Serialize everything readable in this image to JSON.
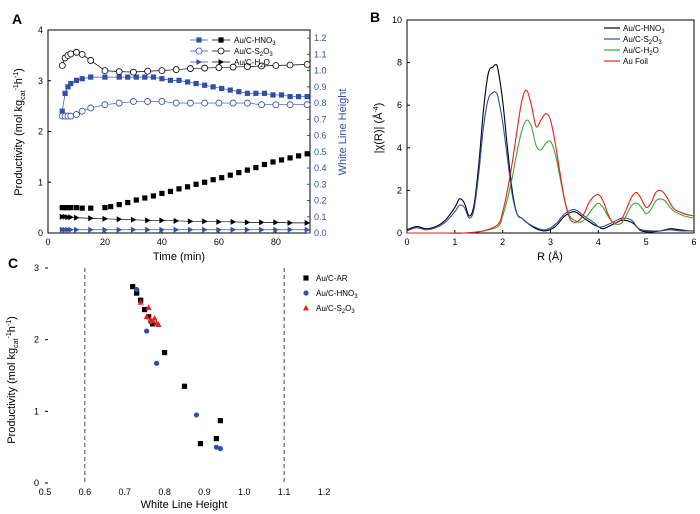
{
  "chart_data": [
    {
      "panel": "A",
      "type": "line",
      "xlabel": "Time (min)",
      "ylabel": "Productivity (mol kg_cat^-1 h^-1)",
      "y2label": "White Line Height",
      "xlim": [
        0,
        92
      ],
      "ylim": [
        0,
        4
      ],
      "y2lim": [
        0,
        1.25
      ],
      "xticks": [
        0,
        20,
        40,
        60,
        80
      ],
      "yticks": [
        0,
        1,
        2,
        3,
        4
      ],
      "y2ticks": [
        0.0,
        0.1,
        0.2,
        0.3,
        0.4,
        0.5,
        0.6,
        0.7,
        0.8,
        0.9,
        1.0,
        1.1,
        1.2
      ],
      "legend": [
        "Au/C-HNO3",
        "Au/C-S2O3",
        "Au/C-H2O"
      ],
      "colors": {
        "black": "#000000",
        "blue": "#2f4fa8"
      },
      "series": [
        {
          "name": "Au/C-HNO3",
          "axis": "left",
          "marker": "square-filled",
          "color": "#000000",
          "x": [
            5,
            6,
            7,
            8,
            10,
            12,
            15,
            20,
            22,
            25,
            28,
            31,
            34,
            37,
            40,
            43,
            46,
            49,
            52,
            55,
            58,
            61,
            64,
            67,
            70,
            73,
            76,
            79,
            82,
            85,
            88,
            91
          ],
          "y": [
            0.5,
            0.5,
            0.5,
            0.5,
            0.5,
            0.49,
            0.49,
            0.5,
            0.52,
            0.56,
            0.6,
            0.65,
            0.69,
            0.73,
            0.78,
            0.82,
            0.87,
            0.91,
            0.96,
            1.0,
            1.05,
            1.09,
            1.14,
            1.19,
            1.24,
            1.29,
            1.35,
            1.4,
            1.44,
            1.48,
            1.52,
            1.56
          ]
        },
        {
          "name": "Au/C-HNO3",
          "axis": "right",
          "marker": "square-filled",
          "line": true,
          "color": "#2f4fa8",
          "x": [
            5,
            6,
            7,
            8,
            10,
            12,
            15,
            20,
            25,
            28,
            31,
            34,
            37,
            40,
            43,
            46,
            49,
            52,
            55,
            58,
            61,
            64,
            67,
            70,
            73,
            76,
            79,
            82,
            85,
            88,
            91
          ],
          "y": [
            0.75,
            0.86,
            0.9,
            0.92,
            0.94,
            0.95,
            0.96,
            0.96,
            0.96,
            0.96,
            0.96,
            0.96,
            0.96,
            0.95,
            0.94,
            0.94,
            0.93,
            0.92,
            0.91,
            0.9,
            0.89,
            0.88,
            0.87,
            0.86,
            0.86,
            0.86,
            0.85,
            0.85,
            0.84,
            0.84,
            0.84
          ]
        },
        {
          "name": "Au/C-S2O3",
          "axis": "left",
          "marker": "circle-open",
          "line": true,
          "color": "#000000",
          "x": [
            5,
            6,
            7,
            8,
            10,
            12,
            15,
            20,
            25,
            30,
            35,
            40,
            45,
            50,
            55,
            60,
            65,
            70,
            75,
            80,
            85,
            91
          ],
          "y": [
            3.3,
            3.45,
            3.5,
            3.53,
            3.56,
            3.52,
            3.4,
            3.2,
            3.18,
            3.17,
            3.19,
            3.2,
            3.22,
            3.24,
            3.25,
            3.26,
            3.27,
            3.28,
            3.29,
            3.3,
            3.31,
            3.32
          ]
        },
        {
          "name": "Au/C-S2O3",
          "axis": "right",
          "marker": "circle-open",
          "line": true,
          "color": "#2f4fa8",
          "x": [
            5,
            6,
            7,
            8,
            10,
            12,
            15,
            20,
            25,
            30,
            35,
            40,
            45,
            50,
            55,
            60,
            65,
            70,
            75,
            80,
            85,
            91
          ],
          "y": [
            0.72,
            0.72,
            0.72,
            0.72,
            0.73,
            0.75,
            0.77,
            0.79,
            0.8,
            0.81,
            0.81,
            0.81,
            0.8,
            0.8,
            0.8,
            0.8,
            0.8,
            0.8,
            0.79,
            0.79,
            0.79,
            0.79
          ]
        },
        {
          "name": "Au/C-H2O",
          "axis": "left",
          "marker": "triangle-right",
          "line": true,
          "color": "#000000",
          "x": [
            5,
            6,
            7,
            8,
            10,
            15,
            20,
            25,
            30,
            35,
            40,
            45,
            50,
            55,
            60,
            65,
            70,
            75,
            80,
            85,
            91
          ],
          "y": [
            0.32,
            0.32,
            0.31,
            0.31,
            0.3,
            0.29,
            0.28,
            0.27,
            0.26,
            0.25,
            0.25,
            0.24,
            0.23,
            0.23,
            0.22,
            0.22,
            0.21,
            0.21,
            0.21,
            0.2,
            0.2
          ]
        },
        {
          "name": "Au/C-H2O",
          "axis": "right",
          "marker": "triangle-right",
          "line": true,
          "color": "#2f4fa8",
          "x": [
            5,
            6,
            7,
            8,
            10,
            15,
            20,
            25,
            30,
            35,
            40,
            45,
            50,
            55,
            60,
            65,
            70,
            75,
            80,
            85,
            91
          ],
          "y": [
            0.02,
            0.02,
            0.02,
            0.02,
            0.02,
            0.02,
            0.02,
            0.02,
            0.02,
            0.02,
            0.02,
            0.02,
            0.02,
            0.02,
            0.02,
            0.02,
            0.02,
            0.02,
            0.02,
            0.02,
            0.02
          ]
        }
      ]
    },
    {
      "panel": "B",
      "type": "line",
      "xlabel": "R (Å)",
      "ylabel": "|χ(R)| (Å^-4)",
      "xlim": [
        0,
        6
      ],
      "ylim": [
        0,
        10
      ],
      "xticks": [
        0,
        1,
        2,
        3,
        4,
        5,
        6
      ],
      "yticks": [
        0,
        2,
        4,
        6,
        8,
        10
      ],
      "legend_position": "top-right",
      "series": [
        {
          "name": "Au/C-HNO3",
          "color": "#000000",
          "x": [
            0,
            0.2,
            0.4,
            0.6,
            0.8,
            1.0,
            1.1,
            1.2,
            1.3,
            1.4,
            1.5,
            1.6,
            1.7,
            1.8,
            1.85,
            1.9,
            2.0,
            2.1,
            2.2,
            2.3,
            2.4,
            2.5,
            2.7,
            2.9,
            3.1,
            3.3,
            3.5,
            3.7,
            3.9,
            4.0,
            4.1,
            4.3,
            4.5,
            4.7,
            4.8,
            4.9,
            5.1,
            5.3,
            5.5,
            5.7,
            5.9,
            6.0
          ],
          "y": [
            0.15,
            0.3,
            0.2,
            0.3,
            0.6,
            1.2,
            1.6,
            1.4,
            0.8,
            1.3,
            3.2,
            5.8,
            7.5,
            7.8,
            7.9,
            7.7,
            6.2,
            4.0,
            2.0,
            0.9,
            0.7,
            0.5,
            0.2,
            0.1,
            0.3,
            0.8,
            1.0,
            0.7,
            0.4,
            0.3,
            0.2,
            0.4,
            0.6,
            0.5,
            0.3,
            0.1,
            0.05,
            0.1,
            0.2,
            0.15,
            0.1,
            0.1
          ]
        },
        {
          "name": "Au/C-S2O3",
          "color": "#2f4fa8",
          "x": [
            0,
            0.2,
            0.4,
            0.6,
            0.8,
            1.0,
            1.1,
            1.2,
            1.3,
            1.4,
            1.5,
            1.6,
            1.7,
            1.8,
            1.85,
            1.9,
            2.0,
            2.1,
            2.2,
            2.3,
            2.4,
            2.5,
            2.7,
            2.9,
            3.1,
            3.3,
            3.5,
            3.7,
            3.9,
            4.0,
            4.1,
            4.3,
            4.5,
            4.7,
            4.8,
            4.9,
            5.1,
            5.3,
            5.5,
            5.7,
            5.9,
            6.0
          ],
          "y": [
            0.1,
            0.25,
            0.15,
            0.25,
            0.5,
            1.0,
            1.3,
            1.2,
            0.7,
            1.1,
            2.8,
            5.0,
            6.3,
            6.6,
            6.6,
            6.4,
            5.2,
            3.5,
            1.8,
            0.9,
            0.7,
            0.5,
            0.25,
            0.15,
            0.4,
            0.9,
            1.1,
            0.8,
            0.5,
            0.3,
            0.3,
            0.5,
            0.7,
            0.6,
            0.3,
            0.15,
            0.1,
            0.1,
            0.15,
            0.1,
            0.1,
            0.1
          ]
        },
        {
          "name": "Au/C-H2O",
          "color": "#3aa63a",
          "x": [
            0,
            0.4,
            0.8,
            1.2,
            1.6,
            1.9,
            2.0,
            2.1,
            2.2,
            2.3,
            2.4,
            2.5,
            2.6,
            2.7,
            2.8,
            2.9,
            3.0,
            3.1,
            3.2,
            3.3,
            3.4,
            3.5,
            3.6,
            3.7,
            3.8,
            3.9,
            4.0,
            4.1,
            4.2,
            4.3,
            4.4,
            4.5,
            4.6,
            4.7,
            4.8,
            4.9,
            5.0,
            5.1,
            5.2,
            5.3,
            5.4,
            5.5,
            5.6,
            5.8,
            6.0
          ],
          "y": [
            0,
            0,
            0,
            0,
            0.1,
            0.3,
            0.8,
            1.6,
            2.6,
            3.8,
            4.8,
            5.3,
            5.0,
            4.1,
            3.9,
            4.2,
            4.3,
            3.7,
            2.6,
            1.5,
            0.8,
            0.6,
            0.5,
            0.6,
            0.9,
            1.2,
            1.4,
            1.2,
            0.8,
            0.5,
            0.4,
            0.5,
            0.9,
            1.3,
            1.4,
            1.2,
            0.9,
            1.1,
            1.5,
            1.6,
            1.5,
            1.2,
            1.0,
            0.8,
            0.7
          ]
        },
        {
          "name": "Au Foil",
          "color": "#e2231a",
          "x": [
            0,
            0.4,
            0.8,
            1.2,
            1.6,
            1.9,
            2.0,
            2.1,
            2.2,
            2.3,
            2.4,
            2.5,
            2.6,
            2.7,
            2.8,
            2.9,
            3.0,
            3.1,
            3.2,
            3.3,
            3.4,
            3.5,
            3.6,
            3.7,
            3.8,
            3.9,
            4.0,
            4.1,
            4.2,
            4.3,
            4.4,
            4.5,
            4.6,
            4.7,
            4.8,
            4.9,
            5.0,
            5.1,
            5.2,
            5.3,
            5.4,
            5.5,
            5.6,
            5.8,
            6.0
          ],
          "y": [
            0,
            0,
            0,
            0,
            0.1,
            0.4,
            1.0,
            2.0,
            3.3,
            4.8,
            6.2,
            6.7,
            6.0,
            5.0,
            5.3,
            5.6,
            5.3,
            4.2,
            2.8,
            1.5,
            0.7,
            0.5,
            0.6,
            0.9,
            1.4,
            1.7,
            1.8,
            1.5,
            0.9,
            0.5,
            0.5,
            0.7,
            1.2,
            1.7,
            1.9,
            1.6,
            1.2,
            1.4,
            1.9,
            2.0,
            1.8,
            1.4,
            1.1,
            0.9,
            0.8
          ]
        }
      ]
    },
    {
      "panel": "C",
      "type": "scatter",
      "xlabel": "White Line Height",
      "ylabel": "Productivity (mol kg_cat^-1 h^-1)",
      "xlim": [
        0.5,
        1.2
      ],
      "ylim": [
        0,
        3
      ],
      "xticks": [
        0.5,
        0.6,
        0.7,
        0.8,
        0.9,
        1.0,
        1.1,
        1.2
      ],
      "yticks": [
        0,
        1,
        2,
        3
      ],
      "vlines": [
        0.6,
        1.1
      ],
      "legend_position": "top-right",
      "series": [
        {
          "name": "Au/C-AR",
          "marker": "square",
          "color": "#000000",
          "x": [
            0.72,
            0.73,
            0.74,
            0.75,
            0.76,
            0.77,
            0.8,
            0.85,
            0.89,
            0.93,
            0.94
          ],
          "y": [
            2.74,
            2.65,
            2.55,
            2.42,
            2.32,
            2.22,
            1.82,
            1.35,
            0.55,
            0.62,
            0.87
          ]
        },
        {
          "name": "Au/C-HNO3",
          "marker": "circle",
          "color": "#2f4fa8",
          "x": [
            0.73,
            0.755,
            0.765,
            0.78,
            0.88,
            0.93,
            0.94
          ],
          "y": [
            2.7,
            2.12,
            2.25,
            1.67,
            0.95,
            0.5,
            0.48
          ]
        },
        {
          "name": "Au/C-S2O3",
          "marker": "triangle",
          "color": "#e2231a",
          "x": [
            0.74,
            0.755,
            0.76,
            0.765,
            0.77,
            0.775,
            0.78,
            0.785
          ],
          "y": [
            2.52,
            2.32,
            2.45,
            2.28,
            2.26,
            2.3,
            2.23,
            2.21
          ]
        }
      ]
    }
  ]
}
